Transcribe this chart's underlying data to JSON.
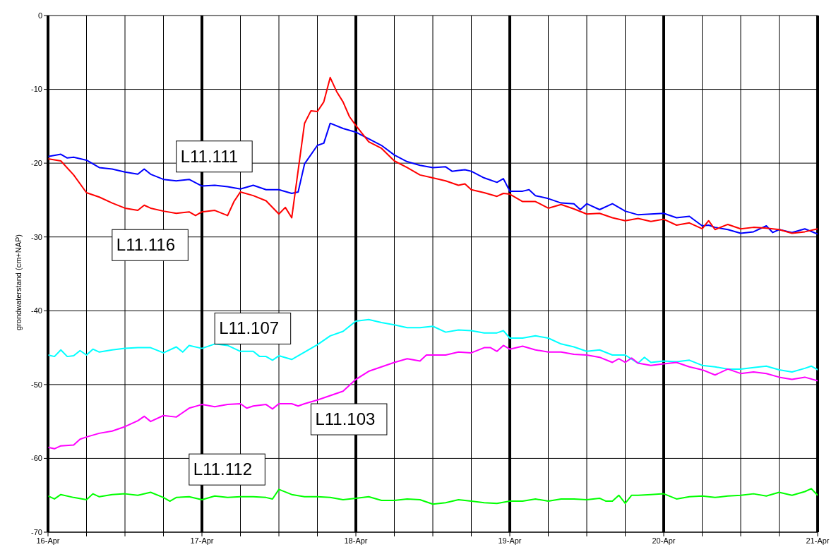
{
  "chart_data": {
    "type": "line",
    "ylabel": "grondwaterstand (cm+NAP)",
    "xlim": [
      "--04-16",
      "--04-21"
    ],
    "ylim": [
      -70,
      0
    ],
    "xticks": [
      {
        "value": "--04-16",
        "label": "16-Apr"
      },
      {
        "value": "--04-16T06:00",
        "label": null
      },
      {
        "value": "--04-16T12:00",
        "label": null
      },
      {
        "value": "--04-16T18:00",
        "label": null
      },
      {
        "value": "--04-17",
        "label": "17-Apr"
      },
      {
        "value": "--04-17T06:00",
        "label": null
      },
      {
        "value": "--04-17T12:00",
        "label": null
      },
      {
        "value": "--04-17T18:00",
        "label": null
      },
      {
        "value": "--04-18",
        "label": "18-Apr"
      },
      {
        "value": "--04-18T06:00",
        "label": null
      },
      {
        "value": "--04-18T12:00",
        "label": null
      },
      {
        "value": "--04-18T18:00",
        "label": null
      },
      {
        "value": "--04-19",
        "label": "19-Apr"
      },
      {
        "value": "--04-19T06:00",
        "label": null
      },
      {
        "value": "--04-19T12:00",
        "label": null
      },
      {
        "value": "--04-19T18:00",
        "label": null
      },
      {
        "value": "--04-20",
        "label": "20-Apr"
      },
      {
        "value": "--04-20T06:00",
        "label": null
      },
      {
        "value": "--04-20T12:00",
        "label": null
      },
      {
        "value": "--04-20T18:00",
        "label": null
      },
      {
        "value": "--04-21",
        "label": "21-Apr"
      }
    ],
    "yticks": [
      -70,
      -60,
      -50,
      -40,
      -30,
      -20,
      -10,
      0
    ],
    "grid": true,
    "legend": false,
    "marker": "none",
    "line_style": "solid",
    "series": [
      {
        "name": "L11.111",
        "color": "#0000ff",
        "x": [
          "--04-16T00:00",
          "--04-16T02:00",
          "--04-16T03:00",
          "--04-16T04:00",
          "--04-16T06:00",
          "--04-16T08:00",
          "--04-16T10:00",
          "--04-16T12:00",
          "--04-16T14:00",
          "--04-16T15:00",
          "--04-16T16:00",
          "--04-16T18:00",
          "--04-16T20:00",
          "--04-16T22:00",
          "--04-17T00:00",
          "--04-17T02:00",
          "--04-17T04:00",
          "--04-17T06:00",
          "--04-17T08:00",
          "--04-17T10:00",
          "--04-17T12:00",
          "--04-17T14:00",
          "--04-17T15:00",
          "--04-17T16:00",
          "--04-17T18:00",
          "--04-17T19:00",
          "--04-17T20:00",
          "--04-17T22:00",
          "--04-18T00:00",
          "--04-18T02:00",
          "--04-18T04:00",
          "--04-18T06:00",
          "--04-18T08:00",
          "--04-18T10:00",
          "--04-18T12:00",
          "--04-18T14:00",
          "--04-18T15:00",
          "--04-18T16:00",
          "--04-18T17:00",
          "--04-18T18:00",
          "--04-18T20:00",
          "--04-18T22:00",
          "--04-18T23:00",
          "--04-19T00:00",
          "--04-19T02:00",
          "--04-19T03:00",
          "--04-19T04:00",
          "--04-19T06:00",
          "--04-19T08:00",
          "--04-19T10:00",
          "--04-19T11:00",
          "--04-19T12:00",
          "--04-19T14:00",
          "--04-19T16:00",
          "--04-19T18:00",
          "--04-19T20:00",
          "--04-19T22:00",
          "--04-20T00:00",
          "--04-20T02:00",
          "--04-20T04:00",
          "--04-20T06:00",
          "--04-20T07:00",
          "--04-20T08:00",
          "--04-20T10:00",
          "--04-20T12:00",
          "--04-20T14:00",
          "--04-20T16:00",
          "--04-20T17:00",
          "--04-20T18:00",
          "--04-20T20:00",
          "--04-20T22:00",
          "--04-21T00:00"
        ],
        "values": [
          -19.1,
          -18.8,
          -19.3,
          -19.2,
          -19.6,
          -20.6,
          -20.8,
          -21.2,
          -21.5,
          -20.8,
          -21.5,
          -22.2,
          -22.4,
          -22.2,
          -23.1,
          -23.0,
          -23.2,
          -23.5,
          -23.0,
          -23.6,
          -23.6,
          -24.1,
          -23.9,
          -20.1,
          -17.6,
          -17.3,
          -14.6,
          -15.3,
          -15.8,
          -16.7,
          -17.6,
          -18.9,
          -19.8,
          -20.3,
          -20.6,
          -20.5,
          -21.1,
          -21.0,
          -20.9,
          -21.1,
          -22.0,
          -22.6,
          -22.1,
          -23.8,
          -23.8,
          -23.6,
          -24.4,
          -24.8,
          -25.4,
          -25.5,
          -26.3,
          -25.5,
          -26.3,
          -25.5,
          -26.5,
          -27.0,
          -26.9,
          -26.8,
          -27.4,
          -27.2,
          -28.5,
          -28.4,
          -28.7,
          -29.0,
          -29.5,
          -29.3,
          -28.5,
          -29.4,
          -29.0,
          -29.4,
          -28.9,
          -29.6
        ]
      },
      {
        "name": "L11.116",
        "color": "#ff0000",
        "x": [
          "--04-16T00:00",
          "--04-16T02:00",
          "--04-16T04:00",
          "--04-16T06:00",
          "--04-16T08:00",
          "--04-16T10:00",
          "--04-16T12:00",
          "--04-16T14:00",
          "--04-16T15:00",
          "--04-16T16:00",
          "--04-16T18:00",
          "--04-16T20:00",
          "--04-16T22:00",
          "--04-16T23:00",
          "--04-17T00:00",
          "--04-17T02:00",
          "--04-17T04:00",
          "--04-17T05:00",
          "--04-17T06:00",
          "--04-17T08:00",
          "--04-17T10:00",
          "--04-17T12:00",
          "--04-17T13:00",
          "--04-17T14:00",
          "--04-17T16:00",
          "--04-17T17:00",
          "--04-17T18:00",
          "--04-17T19:00",
          "--04-17T20:00",
          "--04-17T21:00",
          "--04-17T22:00",
          "--04-17T23:00",
          "--04-18T00:00",
          "--04-18T02:00",
          "--04-18T04:00",
          "--04-18T06:00",
          "--04-18T08:00",
          "--04-18T10:00",
          "--04-18T12:00",
          "--04-18T14:00",
          "--04-18T16:00",
          "--04-18T17:00",
          "--04-18T18:00",
          "--04-18T20:00",
          "--04-18T22:00",
          "--04-18T23:00",
          "--04-19T00:00",
          "--04-19T02:00",
          "--04-19T04:00",
          "--04-19T06:00",
          "--04-19T08:00",
          "--04-19T10:00",
          "--04-19T12:00",
          "--04-19T14:00",
          "--04-19T16:00",
          "--04-19T18:00",
          "--04-19T20:00",
          "--04-19T22:00",
          "--04-20T00:00",
          "--04-20T02:00",
          "--04-20T04:00",
          "--04-20T06:00",
          "--04-20T07:00",
          "--04-20T08:00",
          "--04-20T10:00",
          "--04-20T12:00",
          "--04-20T14:00",
          "--04-20T16:00",
          "--04-20T18:00",
          "--04-20T20:00",
          "--04-20T22:00",
          "--04-21T00:00"
        ],
        "values": [
          -19.4,
          -19.7,
          -21.6,
          -24.0,
          -24.6,
          -25.4,
          -26.1,
          -26.4,
          -25.7,
          -26.1,
          -26.5,
          -26.8,
          -26.6,
          -27.1,
          -26.6,
          -26.4,
          -27.1,
          -25.2,
          -23.9,
          -24.4,
          -25.1,
          -26.9,
          -26.0,
          -27.4,
          -14.6,
          -12.9,
          -13.0,
          -11.7,
          -8.4,
          -10.3,
          -11.7,
          -13.7,
          -14.9,
          -17.1,
          -18.0,
          -19.7,
          -20.6,
          -21.6,
          -22.0,
          -22.4,
          -23.0,
          -22.8,
          -23.6,
          -24.0,
          -24.5,
          -24.1,
          -24.2,
          -25.2,
          -25.2,
          -26.1,
          -25.6,
          -26.2,
          -26.9,
          -26.8,
          -27.4,
          -27.8,
          -27.5,
          -27.9,
          -27.6,
          -28.4,
          -28.1,
          -28.9,
          -27.8,
          -29.0,
          -28.3,
          -28.9,
          -28.7,
          -28.8,
          -29.0,
          -29.5,
          -29.3,
          -28.9
        ]
      },
      {
        "name": "L11.107",
        "color": "#00ffff",
        "x": [
          "--04-16T00:00",
          "--04-16T01:00",
          "--04-16T02:00",
          "--04-16T03:00",
          "--04-16T04:00",
          "--04-16T05:00",
          "--04-16T06:00",
          "--04-16T07:00",
          "--04-16T08:00",
          "--04-16T10:00",
          "--04-16T12:00",
          "--04-16T14:00",
          "--04-16T16:00",
          "--04-16T18:00",
          "--04-16T20:00",
          "--04-16T21:00",
          "--04-16T22:00",
          "--04-17T00:00",
          "--04-17T02:00",
          "--04-17T04:00",
          "--04-17T06:00",
          "--04-17T08:00",
          "--04-17T09:00",
          "--04-17T10:00",
          "--04-17T11:00",
          "--04-17T12:00",
          "--04-17T14:00",
          "--04-17T16:00",
          "--04-17T18:00",
          "--04-17T20:00",
          "--04-17T22:00",
          "--04-18T00:00",
          "--04-18T02:00",
          "--04-18T04:00",
          "--04-18T06:00",
          "--04-18T08:00",
          "--04-18T10:00",
          "--04-18T12:00",
          "--04-18T14:00",
          "--04-18T16:00",
          "--04-18T18:00",
          "--04-18T20:00",
          "--04-18T22:00",
          "--04-18T23:00",
          "--04-19T00:00",
          "--04-19T02:00",
          "--04-19T04:00",
          "--04-19T06:00",
          "--04-19T08:00",
          "--04-19T10:00",
          "--04-19T12:00",
          "--04-19T14:00",
          "--04-19T16:00",
          "--04-19T18:00",
          "--04-19T20:00",
          "--04-19T21:00",
          "--04-19T22:00",
          "--04-20T00:00",
          "--04-20T02:00",
          "--04-20T04:00",
          "--04-20T06:00",
          "--04-20T08:00",
          "--04-20T10:00",
          "--04-20T12:00",
          "--04-20T14:00",
          "--04-20T16:00",
          "--04-20T18:00",
          "--04-20T20:00",
          "--04-20T22:00",
          "--04-20T23:00",
          "--04-21T00:00"
        ],
        "values": [
          -46.0,
          -46.2,
          -45.3,
          -46.2,
          -46.1,
          -45.4,
          -46.0,
          -45.2,
          -45.6,
          -45.3,
          -45.1,
          -45.0,
          -45.0,
          -45.7,
          -44.9,
          -45.6,
          -44.7,
          -45.1,
          -44.5,
          -44.7,
          -45.5,
          -45.5,
          -46.2,
          -46.2,
          -46.7,
          -46.1,
          -46.6,
          -45.6,
          -44.6,
          -43.4,
          -42.8,
          -41.4,
          -41.2,
          -41.6,
          -41.9,
          -42.3,
          -42.3,
          -42.1,
          -42.9,
          -42.6,
          -42.7,
          -43.0,
          -43.0,
          -42.7,
          -43.7,
          -43.7,
          -43.4,
          -43.7,
          -44.5,
          -44.9,
          -45.5,
          -45.3,
          -46.0,
          -46.0,
          -47.1,
          -46.3,
          -47.0,
          -46.8,
          -46.9,
          -46.7,
          -47.4,
          -47.6,
          -47.9,
          -47.9,
          -47.7,
          -47.5,
          -48.0,
          -48.3,
          -47.8,
          -47.5,
          -48.0
        ]
      },
      {
        "name": "L11.103",
        "color": "#ff00ff",
        "x": [
          "--04-16T00:00",
          "--04-16T01:00",
          "--04-16T02:00",
          "--04-16T04:00",
          "--04-16T05:00",
          "--04-16T06:00",
          "--04-16T08:00",
          "--04-16T10:00",
          "--04-16T12:00",
          "--04-16T14:00",
          "--04-16T15:00",
          "--04-16T16:00",
          "--04-16T18:00",
          "--04-16T20:00",
          "--04-16T22:00",
          "--04-17T00:00",
          "--04-17T02:00",
          "--04-17T04:00",
          "--04-17T06:00",
          "--04-17T07:00",
          "--04-17T08:00",
          "--04-17T10:00",
          "--04-17T11:00",
          "--04-17T12:00",
          "--04-17T14:00",
          "--04-17T15:00",
          "--04-17T16:00",
          "--04-17T18:00",
          "--04-17T20:00",
          "--04-17T22:00",
          "--04-18T00:00",
          "--04-18T02:00",
          "--04-18T04:00",
          "--04-18T06:00",
          "--04-18T08:00",
          "--04-18T10:00",
          "--04-18T11:00",
          "--04-18T12:00",
          "--04-18T14:00",
          "--04-18T16:00",
          "--04-18T18:00",
          "--04-18T20:00",
          "--04-18T21:00",
          "--04-18T22:00",
          "--04-18T23:00",
          "--04-19T00:00",
          "--04-19T02:00",
          "--04-19T04:00",
          "--04-19T06:00",
          "--04-19T08:00",
          "--04-19T10:00",
          "--04-19T12:00",
          "--04-19T14:00",
          "--04-19T16:00",
          "--04-19T17:00",
          "--04-19T18:00",
          "--04-19T19:00",
          "--04-19T20:00",
          "--04-19T22:00",
          "--04-20T00:00",
          "--04-20T02:00",
          "--04-20T04:00",
          "--04-20T06:00",
          "--04-20T08:00",
          "--04-20T10:00",
          "--04-20T12:00",
          "--04-20T14:00",
          "--04-20T16:00",
          "--04-20T18:00",
          "--04-20T20:00",
          "--04-20T22:00",
          "--04-21T00:00"
        ],
        "values": [
          -58.5,
          -58.7,
          -58.3,
          -58.2,
          -57.4,
          -57.1,
          -56.6,
          -56.3,
          -55.7,
          -54.9,
          -54.3,
          -55.0,
          -54.2,
          -54.4,
          -53.2,
          -52.7,
          -53.0,
          -52.7,
          -52.6,
          -53.2,
          -52.9,
          -52.7,
          -53.3,
          -52.6,
          -52.6,
          -52.9,
          -52.6,
          -52.1,
          -51.5,
          -50.9,
          -49.3,
          -48.2,
          -47.6,
          -47.0,
          -46.5,
          -46.8,
          -46.0,
          -46.0,
          -46.0,
          -45.6,
          -45.7,
          -45.0,
          -45.0,
          -45.5,
          -44.7,
          -45.2,
          -44.8,
          -45.3,
          -45.6,
          -45.6,
          -45.9,
          -46.0,
          -46.3,
          -47.0,
          -46.5,
          -47.0,
          -46.4,
          -47.1,
          -47.4,
          -47.2,
          -47.0,
          -47.6,
          -48.0,
          -48.7,
          -47.9,
          -48.5,
          -48.3,
          -48.5,
          -49.0,
          -49.3,
          -49.0,
          -49.5
        ]
      },
      {
        "name": "L11.112",
        "color": "#00ff00",
        "x": [
          "--04-16T00:00",
          "--04-16T01:00",
          "--04-16T02:00",
          "--04-16T04:00",
          "--04-16T06:00",
          "--04-16T07:00",
          "--04-16T08:00",
          "--04-16T10:00",
          "--04-16T12:00",
          "--04-16T14:00",
          "--04-16T16:00",
          "--04-16T18:00",
          "--04-16T19:00",
          "--04-16T20:00",
          "--04-16T22:00",
          "--04-17T00:00",
          "--04-17T02:00",
          "--04-17T04:00",
          "--04-17T06:00",
          "--04-17T08:00",
          "--04-17T10:00",
          "--04-17T11:00",
          "--04-17T12:00",
          "--04-17T14:00",
          "--04-17T16:00",
          "--04-17T18:00",
          "--04-17T20:00",
          "--04-17T22:00",
          "--04-18T00:00",
          "--04-18T02:00",
          "--04-18T04:00",
          "--04-18T06:00",
          "--04-18T08:00",
          "--04-18T10:00",
          "--04-18T12:00",
          "--04-18T14:00",
          "--04-18T16:00",
          "--04-18T18:00",
          "--04-18T20:00",
          "--04-18T22:00",
          "--04-19T00:00",
          "--04-19T02:00",
          "--04-19T04:00",
          "--04-19T06:00",
          "--04-19T08:00",
          "--04-19T10:00",
          "--04-19T12:00",
          "--04-19T14:00",
          "--04-19T15:00",
          "--04-19T16:00",
          "--04-19T17:00",
          "--04-19T18:00",
          "--04-19T19:00",
          "--04-19T20:00",
          "--04-19T22:00",
          "--04-20T00:00",
          "--04-20T02:00",
          "--04-20T04:00",
          "--04-20T06:00",
          "--04-20T08:00",
          "--04-20T10:00",
          "--04-20T12:00",
          "--04-20T14:00",
          "--04-20T16:00",
          "--04-20T18:00",
          "--04-20T20:00",
          "--04-20T22:00",
          "--04-20T23:00",
          "--04-21T00:00"
        ],
        "values": [
          -65.1,
          -65.5,
          -64.9,
          -65.3,
          -65.6,
          -64.8,
          -65.2,
          -64.9,
          -64.8,
          -65.0,
          -64.6,
          -65.3,
          -65.8,
          -65.3,
          -65.2,
          -65.6,
          -65.1,
          -65.3,
          -65.2,
          -65.2,
          -65.3,
          -65.5,
          -64.2,
          -64.9,
          -65.2,
          -65.2,
          -65.3,
          -65.6,
          -65.4,
          -65.2,
          -65.7,
          -65.7,
          -65.5,
          -65.6,
          -66.2,
          -66.0,
          -65.6,
          -65.8,
          -66.0,
          -66.1,
          -65.8,
          -65.8,
          -65.5,
          -65.8,
          -65.5,
          -65.5,
          -65.6,
          -65.4,
          -65.8,
          -65.8,
          -65.0,
          -66.1,
          -65.0,
          -65.0,
          -64.9,
          -64.8,
          -65.5,
          -65.2,
          -65.1,
          -65.3,
          -65.1,
          -65.0,
          -64.8,
          -65.1,
          -64.6,
          -65.0,
          -64.5,
          -64.1,
          -65.0
        ]
      }
    ]
  }
}
